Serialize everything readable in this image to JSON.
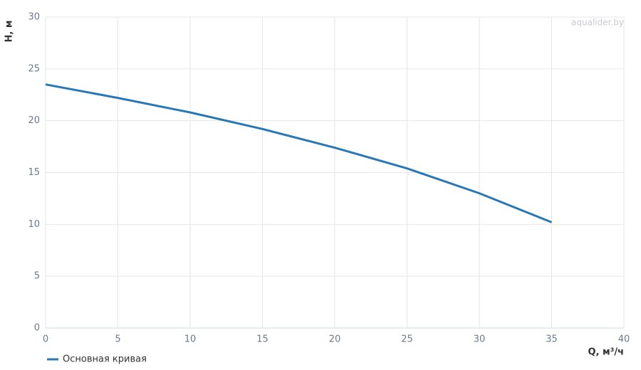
{
  "chart_data": {
    "type": "line",
    "watermark": "aqualider.by",
    "x_label": "Q, м³/ч",
    "y_label": "H, м",
    "x": [
      0,
      5,
      10,
      15,
      20,
      25,
      30,
      35
    ],
    "series": [
      {
        "name": "Основная кривая",
        "color": "#2878b5",
        "values": [
          23.5,
          22.2,
          20.8,
          19.2,
          17.4,
          15.4,
          13.0,
          10.2
        ]
      }
    ],
    "xlim": [
      0,
      40
    ],
    "xticks": [
      0,
      5,
      10,
      15,
      20,
      25,
      30,
      35,
      40
    ],
    "ylim": [
      0,
      30
    ],
    "yticks": [
      0,
      5,
      10,
      15,
      20,
      25,
      30
    ],
    "grid": true,
    "legend": "bottom-left"
  }
}
